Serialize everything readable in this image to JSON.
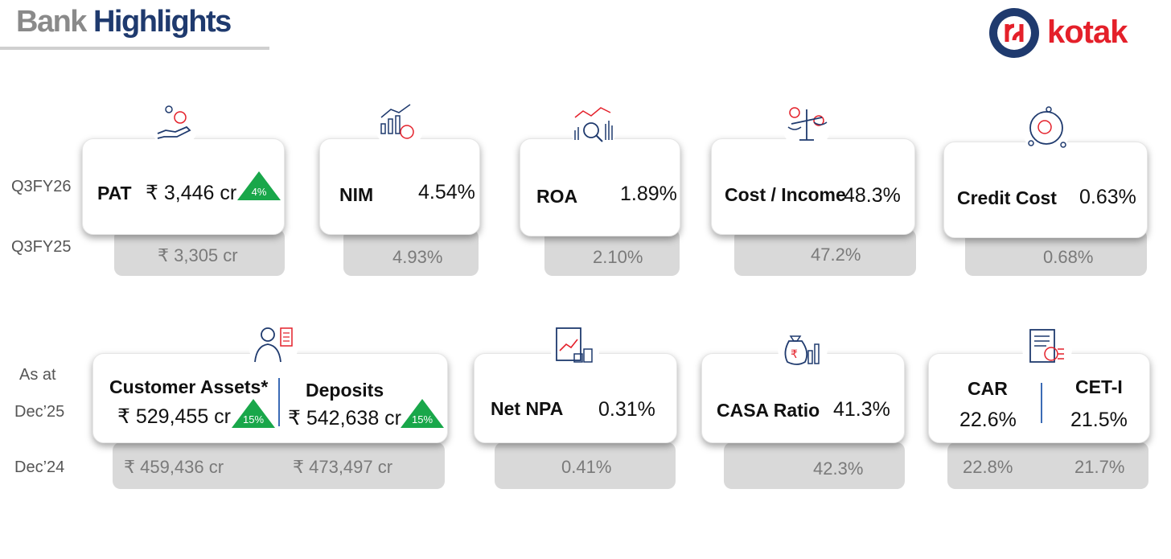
{
  "header": {
    "title_word1": "Bank",
    "title_word2": "Highlights",
    "logo_text": "kotak"
  },
  "row_labels": {
    "current1": "Q3FY26",
    "prior1": "Q3FY25",
    "current2_line1": "As at",
    "current2_line2": "Dec’25",
    "prior2": "Dec’24"
  },
  "metrics_row1": [
    {
      "label": "PAT",
      "value": "₹ 3,446 cr",
      "growth": "4%",
      "prior": "₹ 3,305 cr",
      "icon": "rupee-hand-icon"
    },
    {
      "label": "NIM",
      "value": "4.54%",
      "prior": "4.93%",
      "icon": "growth-chart-icon"
    },
    {
      "label": "ROA",
      "value": "1.89%",
      "prior": "2.10%",
      "icon": "analytics-magnifier-icon"
    },
    {
      "label": "Cost / Income",
      "value": "48.3%",
      "prior": "47.2%",
      "icon": "balance-scale-icon"
    },
    {
      "label": "Credit Cost",
      "value": "0.63%",
      "prior": "0.68%",
      "icon": "rupee-cycle-icon"
    }
  ],
  "metrics_row2": {
    "assets": {
      "label": "Customer Assets*",
      "value": "₹ 529,455 cr",
      "growth": "15%",
      "prior": "₹  459,436 cr",
      "icon": "customer-icon"
    },
    "deposits": {
      "label": "Deposits",
      "value": "₹ 542,638 cr",
      "growth": "15%",
      "prior": "₹  473,497 cr"
    },
    "npa": {
      "label": "Net NPA",
      "value": "0.31%",
      "prior": "0.41%",
      "icon": "report-chart-icon"
    },
    "casa": {
      "label": "CASA Ratio",
      "value": "41.3%",
      "prior": "42.3%",
      "icon": "money-bag-icon"
    },
    "car": {
      "label": "CAR",
      "value": "22.6%",
      "prior": "22.8%",
      "icon": "document-coins-icon"
    },
    "cet": {
      "label": "CET-I",
      "value": "21.5%",
      "prior": "21.7%"
    }
  },
  "colors": {
    "navy": "#1f3a6e",
    "red": "#e4202a",
    "green": "#19a74a",
    "grey_box": "#d9d9d9"
  }
}
